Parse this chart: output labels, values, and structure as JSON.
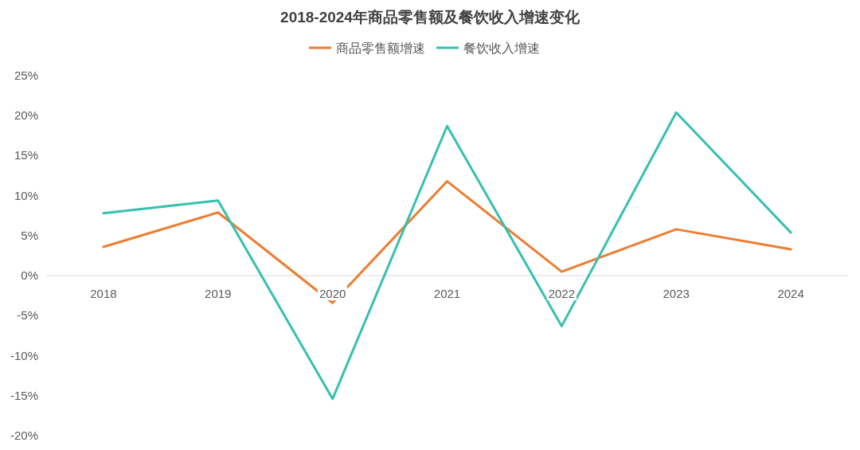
{
  "chart_data": {
    "type": "line",
    "title": "2018-2024年商品零售额及餐饮收入增速变化",
    "categories": [
      "2018",
      "2019",
      "2020",
      "2021",
      "2022",
      "2023",
      "2024"
    ],
    "series": [
      {
        "name": "商品零售额增速",
        "color": "#ed7d31",
        "values": [
          3.6,
          7.9,
          -3.4,
          11.8,
          0.5,
          5.8,
          3.3
        ]
      },
      {
        "name": "餐饮收入增速",
        "color": "#36c0b0",
        "values": [
          7.8,
          9.4,
          -15.4,
          18.7,
          -6.3,
          20.4,
          5.4
        ]
      }
    ],
    "ylim": [
      -20,
      25
    ],
    "yticks": [
      {
        "value": -20,
        "label": "-20%"
      },
      {
        "value": -15,
        "label": "-15%"
      },
      {
        "value": -10,
        "label": "-10%"
      },
      {
        "value": -5,
        "label": "-5%"
      },
      {
        "value": 0,
        "label": "0%"
      },
      {
        "value": 5,
        "label": "5%"
      },
      {
        "value": 10,
        "label": "10%"
      },
      {
        "value": 15,
        "label": "15%"
      },
      {
        "value": 20,
        "label": "20%"
      },
      {
        "value": 25,
        "label": "25%"
      }
    ],
    "legend": "top"
  }
}
